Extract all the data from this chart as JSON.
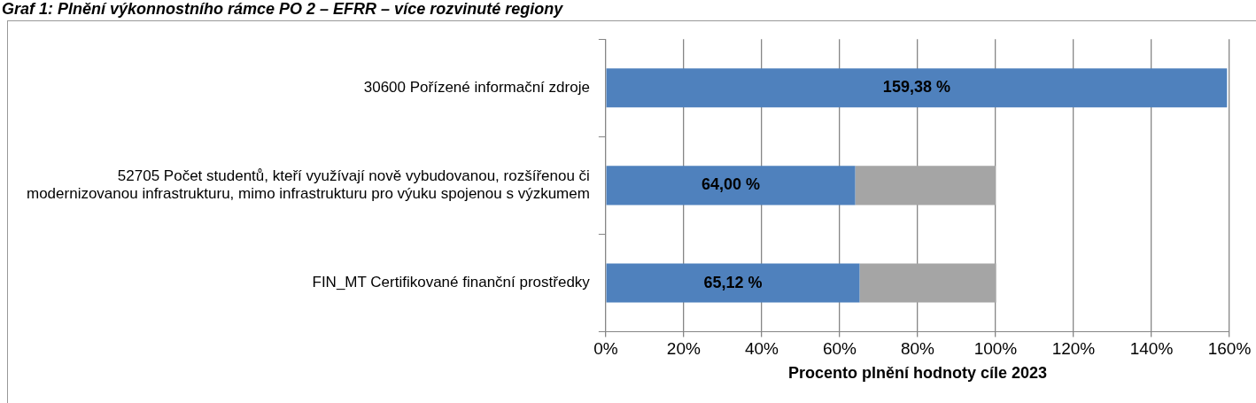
{
  "chart_data": {
    "type": "bar",
    "orientation": "horizontal",
    "stacked": true,
    "title": "Graf 1: Plnění výkonnostního rámce PO 2 – EFRR – více rozvinuté regiony",
    "xlabel": "Procento plnění hodnoty cíle 2023",
    "categories": [
      "30600 Pořízené informační zdroje",
      "52705 Počet studentů, kteří využívají nově vybudovanou, rozšířenou či modernizovanou infrastrukturu, mimo infrastrukturu pro výuku spojenou s výzkumem",
      "FIN_MT Certifikované finanční prostředky"
    ],
    "series": [
      {
        "color": "#4f81bd",
        "values": [
          159.38,
          64.0,
          65.12
        ],
        "value_labels": [
          "159,38 %",
          "64,00 %",
          "65,12 %"
        ]
      },
      {
        "color": "#a5a5a5",
        "values": [
          null,
          36,
          35
        ]
      }
    ],
    "xlim": [
      0,
      160
    ],
    "xticks": [
      {
        "value": 0,
        "label": "0%"
      },
      {
        "value": 20,
        "label": "20%"
      },
      {
        "value": 40,
        "label": "40%"
      },
      {
        "value": 60,
        "label": "60%"
      },
      {
        "value": 80,
        "label": "80%"
      },
      {
        "value": 100,
        "label": "100%"
      },
      {
        "value": 120,
        "label": "120%"
      },
      {
        "value": 140,
        "label": "140%"
      },
      {
        "value": 160,
        "label": "160%"
      }
    ],
    "grid": "x",
    "legend": false
  }
}
